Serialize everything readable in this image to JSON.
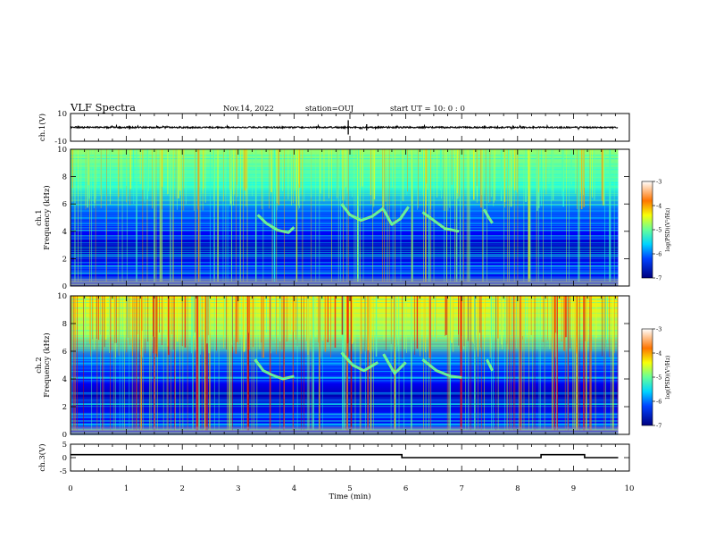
{
  "header": {
    "title": "VLF Spectra",
    "date": "Nov.14, 2022",
    "station": "station=OUJ",
    "start": "start  UT =   10: 0  : 0"
  },
  "chart_data": [
    {
      "type": "line",
      "name": "ch1-waveform",
      "ylabel": "ch.1(V)",
      "ylim": [
        -10,
        10
      ],
      "yticks": [
        "10",
        "-10"
      ],
      "xlim": [
        0,
        10
      ],
      "x": [
        0.0,
        9.8
      ],
      "level": 0
    },
    {
      "type": "heatmap",
      "name": "ch1-spectrogram",
      "ylabel": "ch.1\nFrequency (kHz)",
      "ylim": [
        0,
        10
      ],
      "yticks": [
        "0",
        "2",
        "4",
        "6",
        "8",
        "10"
      ],
      "xlim": [
        0,
        10
      ],
      "data_x_extent": [
        0,
        9.8
      ],
      "colorbar": {
        "label": "log(PSD)(V²/Hz)",
        "range": [
          -7,
          -3
        ],
        "ticks": [
          "-3",
          "-4",
          "-5",
          "-6",
          "-7"
        ]
      },
      "emissions": [
        {
          "x": [
            3.35,
            3.5,
            3.7,
            3.9,
            4.0
          ],
          "y": [
            5.2,
            4.6,
            4.1,
            3.9,
            4.3
          ]
        },
        {
          "x": [
            4.85,
            5.0,
            5.2,
            5.4,
            5.6
          ],
          "y": [
            6.0,
            5.2,
            4.8,
            5.1,
            5.7
          ]
        },
        {
          "x": [
            5.6,
            5.75,
            5.9,
            6.05
          ],
          "y": [
            5.6,
            4.5,
            4.9,
            5.8
          ]
        },
        {
          "x": [
            6.3,
            6.5,
            6.7,
            6.95
          ],
          "y": [
            5.4,
            4.8,
            4.2,
            4.0
          ]
        },
        {
          "x": [
            7.4,
            7.5,
            7.55
          ],
          "y": [
            5.6,
            4.9,
            4.6
          ]
        }
      ]
    },
    {
      "type": "heatmap",
      "name": "ch2-spectrogram",
      "ylabel": "ch.2\nFrequency (kHz)",
      "ylim": [
        0,
        10
      ],
      "yticks": [
        "0",
        "2",
        "4",
        "6",
        "8",
        "10"
      ],
      "xlim": [
        0,
        10
      ],
      "data_x_extent": [
        0,
        9.8
      ],
      "colorbar": {
        "label": "log(PSD)(V²/Hz)",
        "range": [
          -7,
          -3
        ],
        "ticks": [
          "-3",
          "-4",
          "-5",
          "-6",
          "-7"
        ]
      },
      "emissions": [
        {
          "x": [
            3.3,
            3.45,
            3.6,
            3.8,
            4.0
          ],
          "y": [
            5.4,
            4.6,
            4.3,
            4.0,
            4.2
          ]
        },
        {
          "x": [
            4.85,
            5.05,
            5.25,
            5.5
          ],
          "y": [
            5.9,
            5.0,
            4.6,
            5.2
          ]
        },
        {
          "x": [
            5.6,
            5.8,
            6.0
          ],
          "y": [
            5.8,
            4.4,
            5.2
          ]
        },
        {
          "x": [
            6.3,
            6.55,
            6.8,
            7.0
          ],
          "y": [
            5.4,
            4.6,
            4.2,
            4.1
          ]
        },
        {
          "x": [
            7.45,
            7.55
          ],
          "y": [
            5.4,
            4.6
          ]
        }
      ]
    },
    {
      "type": "line",
      "name": "ch3-signal",
      "ylabel": "ch.3(V)",
      "ylim": [
        -5,
        5
      ],
      "yticks": [
        "5",
        "0",
        "-5"
      ],
      "xlim": [
        0,
        10
      ],
      "xticks": [
        "0",
        "1",
        "2",
        "3",
        "4",
        "5",
        "6",
        "7",
        "8",
        "9",
        "10"
      ],
      "xlabel": "Time  (min)",
      "x": [
        0,
        5.93,
        5.93,
        8.42,
        8.42,
        9.2,
        9.2,
        9.8
      ],
      "y": [
        1.1,
        1.1,
        0.0,
        0.0,
        1.1,
        1.1,
        0.0,
        0.0
      ]
    }
  ]
}
